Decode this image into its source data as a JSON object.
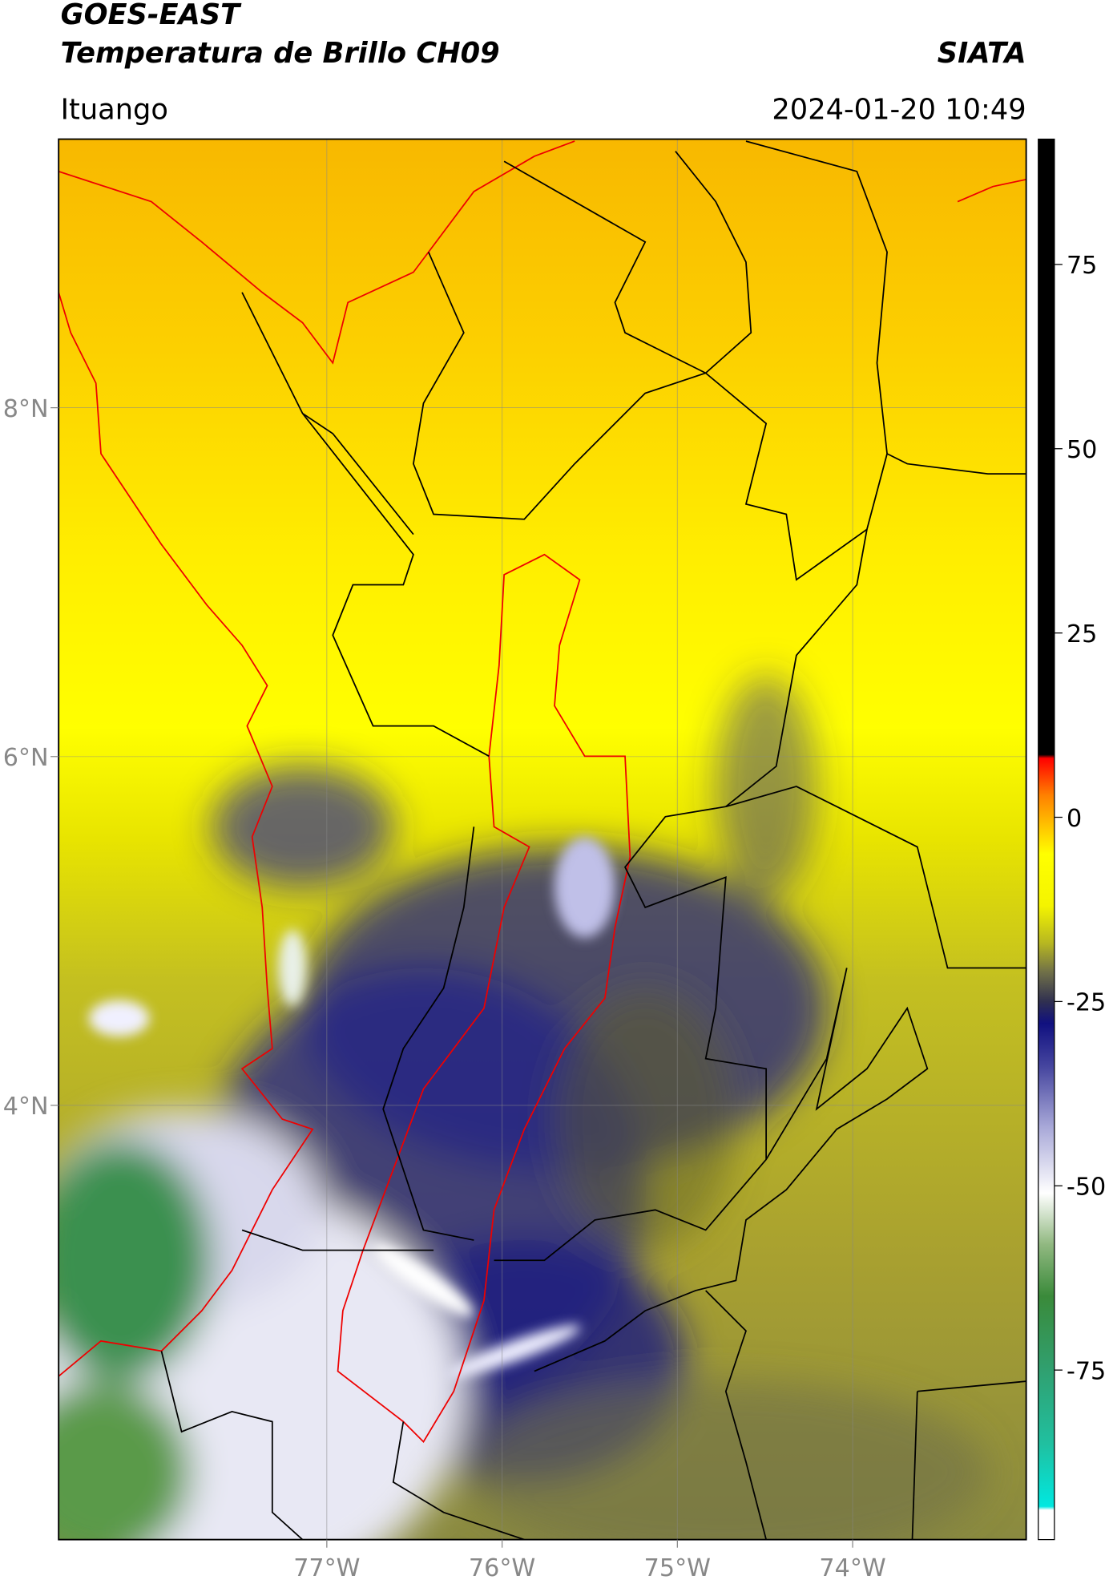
{
  "header": {
    "title": "GOES-EAST",
    "subtitle": "Temperatura de Brillo CH09",
    "source": "SIATA",
    "location": "Ituango",
    "datetime": "2024-01-20 10:49"
  },
  "map": {
    "lonlim": [
      -78.53,
      -73.01
    ],
    "latlim": [
      1.51,
      9.54
    ],
    "lonticks": [
      {
        "value": -77,
        "label": "77°W"
      },
      {
        "value": -76,
        "label": "76°W"
      },
      {
        "value": -75,
        "label": "75°W"
      },
      {
        "value": -74,
        "label": "74°W"
      }
    ],
    "latticks": [
      {
        "value": 4,
        "label": "4°N"
      },
      {
        "value": 6,
        "label": "6°N"
      },
      {
        "value": 8,
        "label": "8°N"
      }
    ],
    "grid": true
  },
  "colorbar": {
    "lim": [
      -98,
      92
    ],
    "ticks": [
      -75,
      -50,
      -25,
      0,
      25,
      50,
      75
    ],
    "stops": [
      {
        "value": -98,
        "color": "#ffffff"
      },
      {
        "value": -94,
        "color": "#ffffff"
      },
      {
        "value": -93.5,
        "color": "#00e8e0"
      },
      {
        "value": -85,
        "color": "#20c0a0"
      },
      {
        "value": -75,
        "color": "#30a070"
      },
      {
        "value": -65,
        "color": "#3a8a3a"
      },
      {
        "value": -58,
        "color": "#90b880"
      },
      {
        "value": -51,
        "color": "#ffffff"
      },
      {
        "value": -42,
        "color": "#a8a8d8"
      },
      {
        "value": -34,
        "color": "#4848a0"
      },
      {
        "value": -28,
        "color": "#101080"
      },
      {
        "value": -25,
        "color": "#303050"
      },
      {
        "value": -21,
        "color": "#707048"
      },
      {
        "value": -17,
        "color": "#b8b820"
      },
      {
        "value": -12,
        "color": "#f4f400"
      },
      {
        "value": -5,
        "color": "#ffff00"
      },
      {
        "value": -1,
        "color": "#ffc000"
      },
      {
        "value": 3,
        "color": "#ff8000"
      },
      {
        "value": 8,
        "color": "#ff0000"
      },
      {
        "value": 8.5,
        "color": "#000000"
      },
      {
        "value": 92,
        "color": "#000000"
      }
    ]
  }
}
